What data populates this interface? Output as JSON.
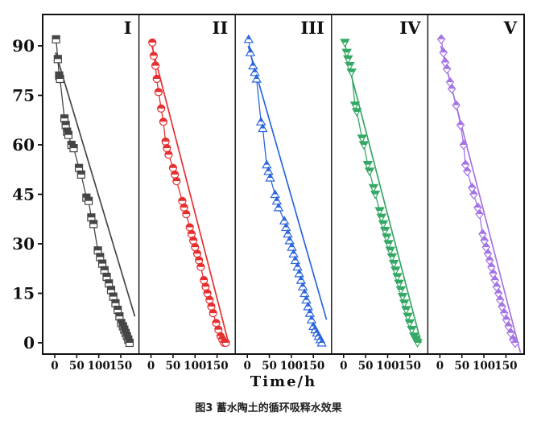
{
  "figure": {
    "xlabel": "Time/h",
    "caption": "图3  蓄水陶土的循环吸释水效果"
  },
  "chart_data": {
    "type": "scatter",
    "title": "",
    "xlabel": "Time/h",
    "ylabel": "",
    "grid": false,
    "axis_color": "#111111",
    "x_ticks": [
      0,
      50,
      100,
      150
    ],
    "y_ticks": [
      0,
      15,
      30,
      45,
      60,
      75,
      90
    ],
    "ylim": [
      -4,
      100
    ],
    "panel_xlim": [
      -28,
      192
    ],
    "panels": [
      {
        "label": "I",
        "marker": "square",
        "color": "#454545",
        "points": [
          [
            3,
            92
          ],
          [
            7,
            86
          ],
          [
            10,
            81
          ],
          [
            12,
            80
          ],
          [
            22,
            68
          ],
          [
            25,
            66
          ],
          [
            28,
            64
          ],
          [
            31,
            63
          ],
          [
            38,
            60
          ],
          [
            43,
            59
          ],
          [
            55,
            53
          ],
          [
            60,
            51
          ],
          [
            72,
            44
          ],
          [
            77,
            43
          ],
          [
            83,
            38
          ],
          [
            88,
            36
          ],
          [
            98,
            28
          ],
          [
            103,
            26
          ],
          [
            108,
            24
          ],
          [
            113,
            22
          ],
          [
            118,
            20
          ],
          [
            123,
            18
          ],
          [
            128,
            16
          ],
          [
            133,
            14
          ],
          [
            138,
            12
          ],
          [
            143,
            10
          ],
          [
            147,
            8
          ],
          [
            151,
            6
          ],
          [
            155,
            5
          ],
          [
            158,
            4
          ],
          [
            161,
            3
          ],
          [
            164,
            2
          ],
          [
            167,
            1
          ],
          [
            170,
            0
          ]
        ],
        "fit_line": [
          [
            2,
            88
          ],
          [
            182,
            8
          ]
        ]
      },
      {
        "label": "II",
        "marker": "circle",
        "color": "#e53030",
        "points": [
          [
            3,
            91
          ],
          [
            6,
            87
          ],
          [
            10,
            84
          ],
          [
            13,
            80
          ],
          [
            17,
            76
          ],
          [
            23,
            71
          ],
          [
            28,
            67
          ],
          [
            33,
            61
          ],
          [
            36,
            59
          ],
          [
            40,
            57
          ],
          [
            50,
            53
          ],
          [
            54,
            51
          ],
          [
            58,
            49
          ],
          [
            71,
            43
          ],
          [
            75,
            41
          ],
          [
            80,
            39
          ],
          [
            88,
            35
          ],
          [
            92,
            33
          ],
          [
            96,
            31
          ],
          [
            100,
            29
          ],
          [
            105,
            27
          ],
          [
            109,
            25
          ],
          [
            113,
            23
          ],
          [
            120,
            19
          ],
          [
            124,
            17
          ],
          [
            128,
            15
          ],
          [
            133,
            13
          ],
          [
            137,
            11
          ],
          [
            141,
            9
          ],
          [
            148,
            6
          ],
          [
            153,
            4
          ],
          [
            158,
            2
          ],
          [
            162,
            1
          ],
          [
            166,
            0
          ],
          [
            170,
            0
          ]
        ],
        "fit_line": [
          [
            2,
            90
          ],
          [
            176,
            0
          ]
        ]
      },
      {
        "label": "III",
        "marker": "triangle-up",
        "color": "#2a66dd",
        "points": [
          [
            3,
            92
          ],
          [
            7,
            88
          ],
          [
            13,
            84
          ],
          [
            17,
            82
          ],
          [
            21,
            80
          ],
          [
            31,
            67
          ],
          [
            35,
            65
          ],
          [
            44,
            54
          ],
          [
            48,
            52
          ],
          [
            52,
            50
          ],
          [
            63,
            45
          ],
          [
            67,
            43
          ],
          [
            71,
            41
          ],
          [
            84,
            37
          ],
          [
            88,
            35
          ],
          [
            92,
            33
          ],
          [
            96,
            31
          ],
          [
            101,
            29
          ],
          [
            105,
            27
          ],
          [
            109,
            25
          ],
          [
            114,
            23
          ],
          [
            118,
            21
          ],
          [
            122,
            19
          ],
          [
            126,
            17
          ],
          [
            130,
            15
          ],
          [
            134,
            13
          ],
          [
            138,
            11
          ],
          [
            142,
            9
          ],
          [
            146,
            7
          ],
          [
            150,
            5
          ],
          [
            154,
            4
          ],
          [
            158,
            3
          ],
          [
            162,
            2
          ],
          [
            166,
            1
          ],
          [
            169,
            0
          ]
        ],
        "fit_line": [
          [
            2,
            90
          ],
          [
            180,
            7
          ]
        ]
      },
      {
        "label": "IV",
        "marker": "triangle-down",
        "color": "#35a865",
        "points": [
          [
            3,
            91
          ],
          [
            7,
            88
          ],
          [
            10,
            86
          ],
          [
            14,
            84
          ],
          [
            18,
            82
          ],
          [
            26,
            72
          ],
          [
            30,
            70
          ],
          [
            42,
            62
          ],
          [
            46,
            60
          ],
          [
            55,
            54
          ],
          [
            59,
            52
          ],
          [
            68,
            47
          ],
          [
            72,
            45
          ],
          [
            82,
            40
          ],
          [
            86,
            38
          ],
          [
            90,
            36
          ],
          [
            94,
            34
          ],
          [
            98,
            32
          ],
          [
            102,
            30
          ],
          [
            106,
            28
          ],
          [
            110,
            26
          ],
          [
            114,
            24
          ],
          [
            118,
            22
          ],
          [
            122,
            20
          ],
          [
            126,
            18
          ],
          [
            130,
            16
          ],
          [
            134,
            14
          ],
          [
            138,
            12
          ],
          [
            142,
            10
          ],
          [
            146,
            8
          ],
          [
            150,
            6
          ],
          [
            155,
            4
          ],
          [
            160,
            2
          ],
          [
            164,
            1
          ],
          [
            168,
            0
          ]
        ],
        "fit_line": [
          [
            2,
            89
          ],
          [
            176,
            0
          ]
        ]
      },
      {
        "label": "V",
        "marker": "diamond",
        "color": "#a474e4",
        "points": [
          [
            3,
            92
          ],
          [
            8,
            88
          ],
          [
            12,
            85
          ],
          [
            16,
            83
          ],
          [
            23,
            79
          ],
          [
            27,
            77
          ],
          [
            37,
            72
          ],
          [
            47,
            66
          ],
          [
            54,
            60
          ],
          [
            58,
            54
          ],
          [
            62,
            52
          ],
          [
            73,
            47
          ],
          [
            77,
            45
          ],
          [
            86,
            41
          ],
          [
            90,
            39
          ],
          [
            97,
            33
          ],
          [
            101,
            31
          ],
          [
            105,
            29
          ],
          [
            109,
            27
          ],
          [
            113,
            25
          ],
          [
            117,
            23
          ],
          [
            121,
            21
          ],
          [
            125,
            19
          ],
          [
            129,
            17
          ],
          [
            133,
            15
          ],
          [
            137,
            13
          ],
          [
            141,
            11
          ],
          [
            146,
            9
          ],
          [
            151,
            7
          ],
          [
            156,
            5
          ],
          [
            161,
            3
          ],
          [
            166,
            1
          ],
          [
            171,
            0
          ]
        ],
        "fit_line": [
          [
            2,
            90
          ],
          [
            183,
            -3
          ]
        ]
      }
    ]
  }
}
